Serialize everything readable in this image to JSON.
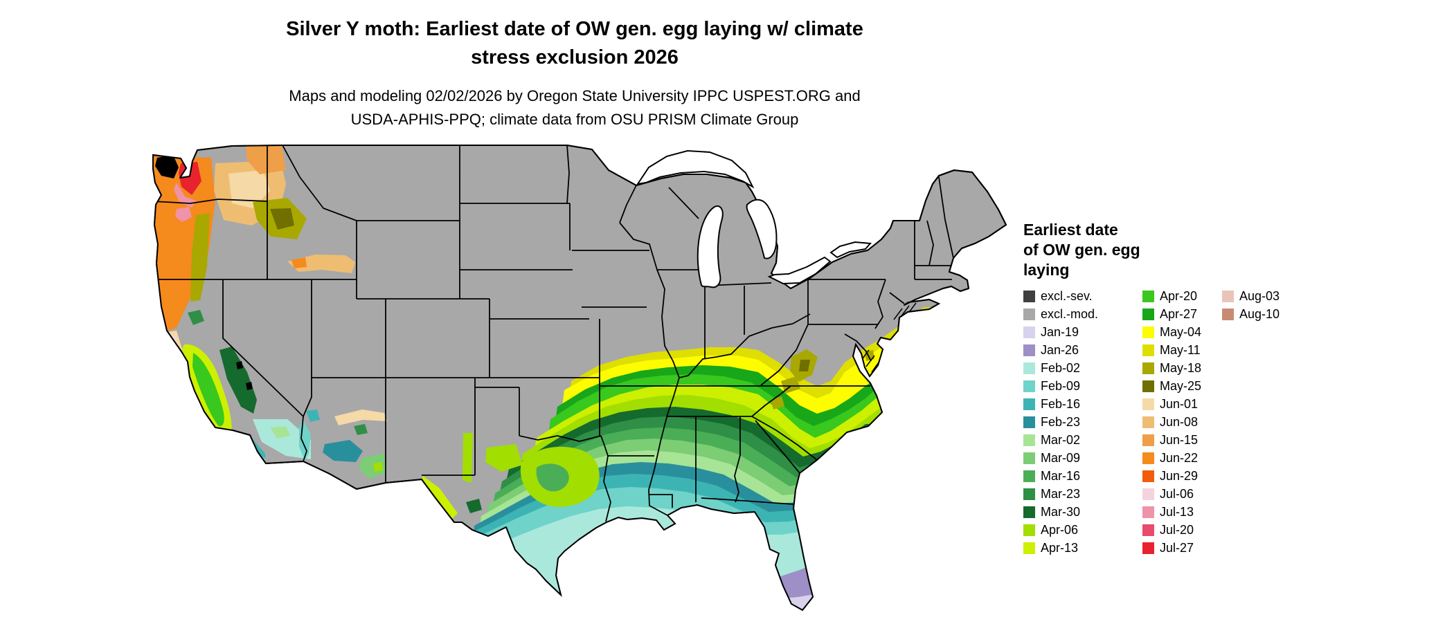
{
  "title": {
    "line1": "Silver Y moth: Earliest date of OW gen. egg laying w/ climate",
    "line2": "stress exclusion 2026"
  },
  "subtitle": {
    "line1": "Maps and modeling 02/02/2026 by Oregon State University IPPC USPEST.ORG and",
    "line2": "USDA-APHIS-PPQ; climate data from OSU PRISM Climate Group"
  },
  "legend": {
    "title_lines": [
      "Earliest date",
      "of OW gen. egg",
      "laying"
    ],
    "columns": [
      {
        "entries": [
          {
            "label": "excl.-sev.",
            "color": "#404040"
          },
          {
            "label": "excl.-mod.",
            "color": "#a8a8a8"
          },
          {
            "label": "Jan-19",
            "color": "#d9d2ec"
          },
          {
            "label": "Jan-26",
            "color": "#9e8fc7"
          },
          {
            "label": "Feb-02",
            "color": "#abe8dc"
          },
          {
            "label": "Feb-09",
            "color": "#6fd3c9"
          },
          {
            "label": "Feb-16",
            "color": "#3db4b4"
          },
          {
            "label": "Feb-23",
            "color": "#2a8f9c"
          },
          {
            "label": "Mar-02",
            "color": "#a8e496"
          },
          {
            "label": "Mar-09",
            "color": "#7ccd74"
          },
          {
            "label": "Mar-16",
            "color": "#4aae57"
          },
          {
            "label": "Mar-23",
            "color": "#2f8f46"
          },
          {
            "label": "Mar-30",
            "color": "#156a2e"
          },
          {
            "label": "Apr-06",
            "color": "#a2de00"
          },
          {
            "label": "Apr-13",
            "color": "#cdf000"
          }
        ]
      },
      {
        "entries": [
          {
            "label": "Apr-20",
            "color": "#39c81e"
          },
          {
            "label": "Apr-27",
            "color": "#18a718"
          },
          {
            "label": "May-04",
            "color": "#fdfd00"
          },
          {
            "label": "May-11",
            "color": "#dede00"
          },
          {
            "label": "May-18",
            "color": "#a8a800"
          },
          {
            "label": "May-25",
            "color": "#6f7000"
          },
          {
            "label": "Jun-01",
            "color": "#f5d9a6"
          },
          {
            "label": "Jun-08",
            "color": "#efbd72"
          },
          {
            "label": "Jun-15",
            "color": "#ee9f47"
          },
          {
            "label": "Jun-22",
            "color": "#f58a1d"
          },
          {
            "label": "Jun-29",
            "color": "#f25c0a"
          },
          {
            "label": "Jul-06",
            "color": "#f5d3dc"
          },
          {
            "label": "Jul-13",
            "color": "#ef93a8"
          },
          {
            "label": "Jul-20",
            "color": "#e84b6b"
          },
          {
            "label": "Jul-27",
            "color": "#e8232e"
          }
        ]
      },
      {
        "entries": [
          {
            "label": "Aug-03",
            "color": "#e9c4b8"
          },
          {
            "label": "Aug-10",
            "color": "#c98a74"
          }
        ]
      }
    ]
  },
  "map": {
    "background": "#ffffff",
    "water": "#ffffff",
    "ink": "#000000"
  }
}
